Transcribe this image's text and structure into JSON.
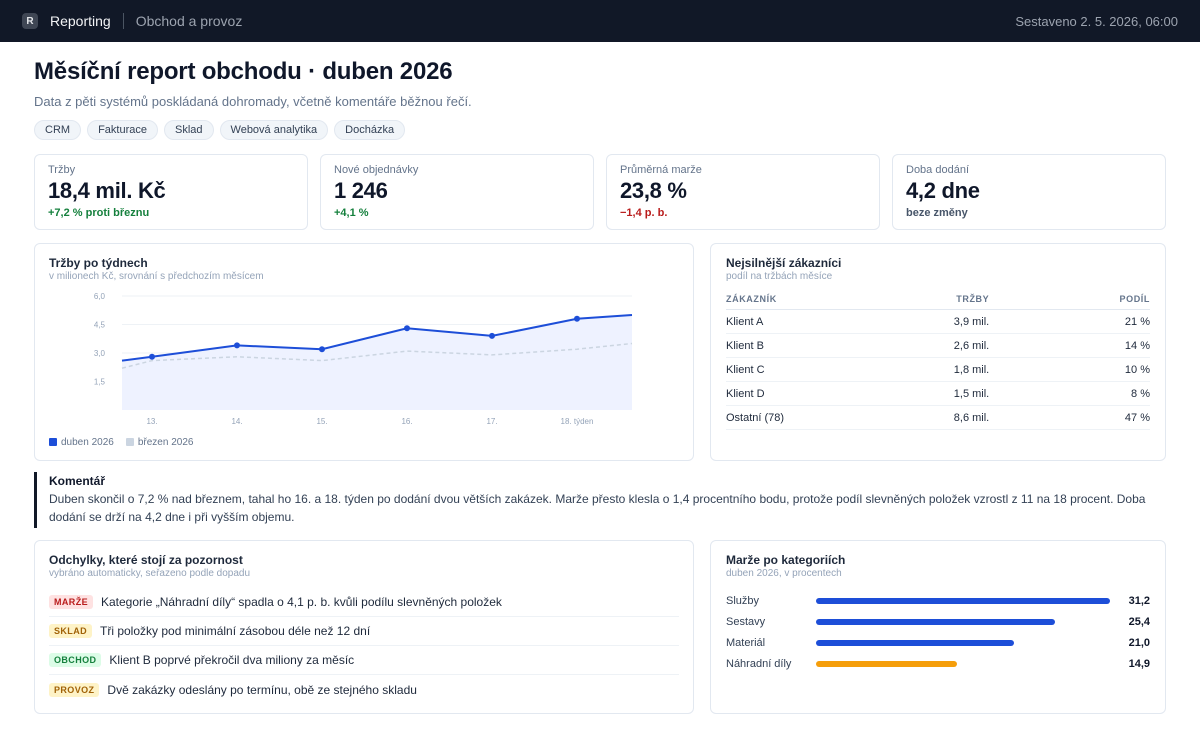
{
  "topbar": {
    "logo_letter": "R",
    "app_name": "Reporting",
    "section": "Obchod a provoz",
    "generated": "Sestaveno 2. 5. 2026, 06:00"
  },
  "header": {
    "title": "Měsíční report obchodu · duben 2026",
    "subtitle": "Data z pěti systémů poskládaná dohromady, včetně komentáře běžnou řečí.",
    "sources": [
      "CRM",
      "Fakturace",
      "Sklad",
      "Webová analytika",
      "Docházka"
    ]
  },
  "kpis": [
    {
      "label": "Tržby",
      "value": "18,4 mil. Kč",
      "delta": "+7,2 % proti březnu",
      "trend": "up"
    },
    {
      "label": "Nové objednávky",
      "value": "1 246",
      "delta": "+4,1 %",
      "trend": "up"
    },
    {
      "label": "Průměrná marže",
      "value": "23,8 %",
      "delta": "−1,4 p. b.",
      "trend": "down"
    },
    {
      "label": "Doba dodání",
      "value": "4,2 dne",
      "delta": "beze změny",
      "trend": "flat"
    }
  ],
  "chart_data": {
    "type": "line",
    "title": "Tržby po týdnech",
    "subtitle": "v milionech Kč, srovnání s předchozím měsícem",
    "x": [
      "13.",
      "14.",
      "15.",
      "16.",
      "17.",
      "18. týden"
    ],
    "y_ticks": [
      "1,5",
      "3,0",
      "4,5",
      "6,0"
    ],
    "ylim": [
      0,
      6
    ],
    "grid": true,
    "series": [
      {
        "name": "duben 2026",
        "color": "#1d4ed8",
        "values": [
          2.8,
          3.4,
          3.2,
          4.3,
          3.9,
          4.8
        ],
        "start": 2.6,
        "end": 5.0
      },
      {
        "name": "březen 2026",
        "color": "#cbd5e1",
        "values": [
          2.6,
          2.8,
          2.6,
          3.1,
          2.9,
          3.2
        ],
        "start": 2.2,
        "end": 3.5
      }
    ]
  },
  "customers": {
    "title": "Nejsilnější zákazníci",
    "subtitle": "podíl na tržbách měsíce",
    "headers": [
      "ZÁKAZNÍK",
      "TRŽBY",
      "PODÍL"
    ],
    "rows": [
      [
        "Klient A",
        "3,9 mil.",
        "21 %"
      ],
      [
        "Klient B",
        "2,6 mil.",
        "14 %"
      ],
      [
        "Klient C",
        "1,8 mil.",
        "10 %"
      ],
      [
        "Klient D",
        "1,5 mil.",
        "8 %"
      ],
      [
        "Ostatní (78)",
        "8,6 mil.",
        "47 %"
      ]
    ]
  },
  "comment": {
    "title": "Komentář",
    "body": "Duben skončil o 7,2 % nad březnem, tahal ho 16. a 18. týden po dodání dvou větších zakázek. Marže přesto klesla o 1,4 procentního bodu, protože podíl slevněných položek vzrostl z 11 na 18 procent. Doba dodání se drží na 4,2 dne i při vyšším objemu."
  },
  "deviations": {
    "title": "Odchylky, které stojí za pozornost",
    "subtitle": "vybráno automaticky, seřazeno podle dopadu",
    "items": [
      {
        "tag": "MARŽE",
        "text": "Kategorie „Náhradní díly“ spadla o 4,1 p. b. kvůli podílu slevněných položek",
        "color": "#b91c1c",
        "bg": "#fee2e2"
      },
      {
        "tag": "SKLAD",
        "text": "Tři položky pod minimální zásobou déle než 12 dní",
        "color": "#a16207",
        "bg": "#fef3c7"
      },
      {
        "tag": "OBCHOD",
        "text": "Klient B poprvé překročil dva miliony za měsíc",
        "color": "#15803d",
        "bg": "#dcfce7"
      },
      {
        "tag": "PROVOZ",
        "text": "Dvě zakázky odeslány po termínu, obě ze stejného skladu",
        "color": "#a16207",
        "bg": "#fef3c7"
      }
    ]
  },
  "margins": {
    "title": "Marže po kategoriích",
    "subtitle": "duben 2026, v procentech",
    "max": 31.2,
    "items": [
      {
        "name": "Služby",
        "value": 31.2,
        "label": "31,2",
        "color": "#1d4ed8"
      },
      {
        "name": "Sestavy",
        "value": 25.4,
        "label": "25,4",
        "color": "#1d4ed8"
      },
      {
        "name": "Materiál",
        "value": 21.0,
        "label": "21,0",
        "color": "#1d4ed8"
      },
      {
        "name": "Náhradní díly",
        "value": 14.9,
        "label": "14,9",
        "color": "#f59e0b"
      }
    ]
  }
}
